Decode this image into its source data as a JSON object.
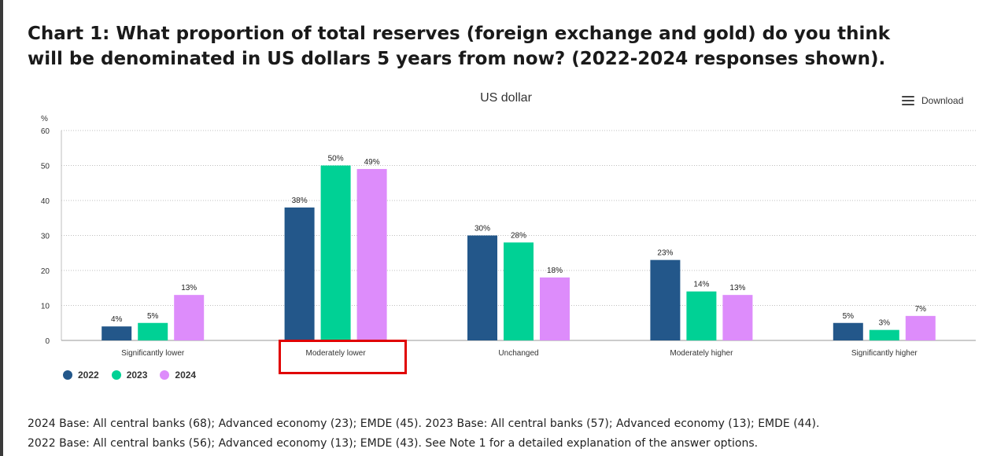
{
  "page": {
    "title": "Chart 1: What proportion of total reserves (foreign exchange and gold) do you think will be denominated in US dollars 5 years from now? (2022-2024 responses shown).",
    "notes": [
      "2024 Base: All central banks (68); Advanced economy (23); EMDE (45). 2023 Base: All central banks (57); Advanced economy (13); EMDE (44).",
      "2022 Base: All central banks (56); Advanced economy (13); EMDE (43). See Note 1 for a detailed explanation of the answer options."
    ]
  },
  "toolbar": {
    "download_label": "Download",
    "download_icon": "menu-icon"
  },
  "chart_data": {
    "type": "bar",
    "title": "US dollar",
    "ylabel": "%",
    "xlabel": "",
    "ylim": [
      0,
      60
    ],
    "yticks": [
      0,
      10,
      20,
      30,
      40,
      50,
      60
    ],
    "grid": true,
    "categories": [
      "Significantly lower",
      "Moderately lower",
      "Unchanged",
      "Moderately higher",
      "Significantly higher"
    ],
    "series": [
      {
        "name": "2022",
        "color": "#23578a",
        "values": [
          4,
          38,
          30,
          23,
          5
        ],
        "labels": [
          "4%",
          "38%",
          "30%",
          "23%",
          "5%"
        ]
      },
      {
        "name": "2023",
        "color": "#00d195",
        "values": [
          5,
          50,
          28,
          14,
          3
        ],
        "labels": [
          "5%",
          "50%",
          "28%",
          "14%",
          "3%"
        ]
      },
      {
        "name": "2024",
        "color": "#dd8cfb",
        "values": [
          13,
          49,
          18,
          13,
          7
        ],
        "labels": [
          "13%",
          "49%",
          "18%",
          "13%",
          "7%"
        ]
      }
    ],
    "legend_position": "bottom-left",
    "highlighted_category": "Moderately lower",
    "highlight_color": "#e00000"
  }
}
